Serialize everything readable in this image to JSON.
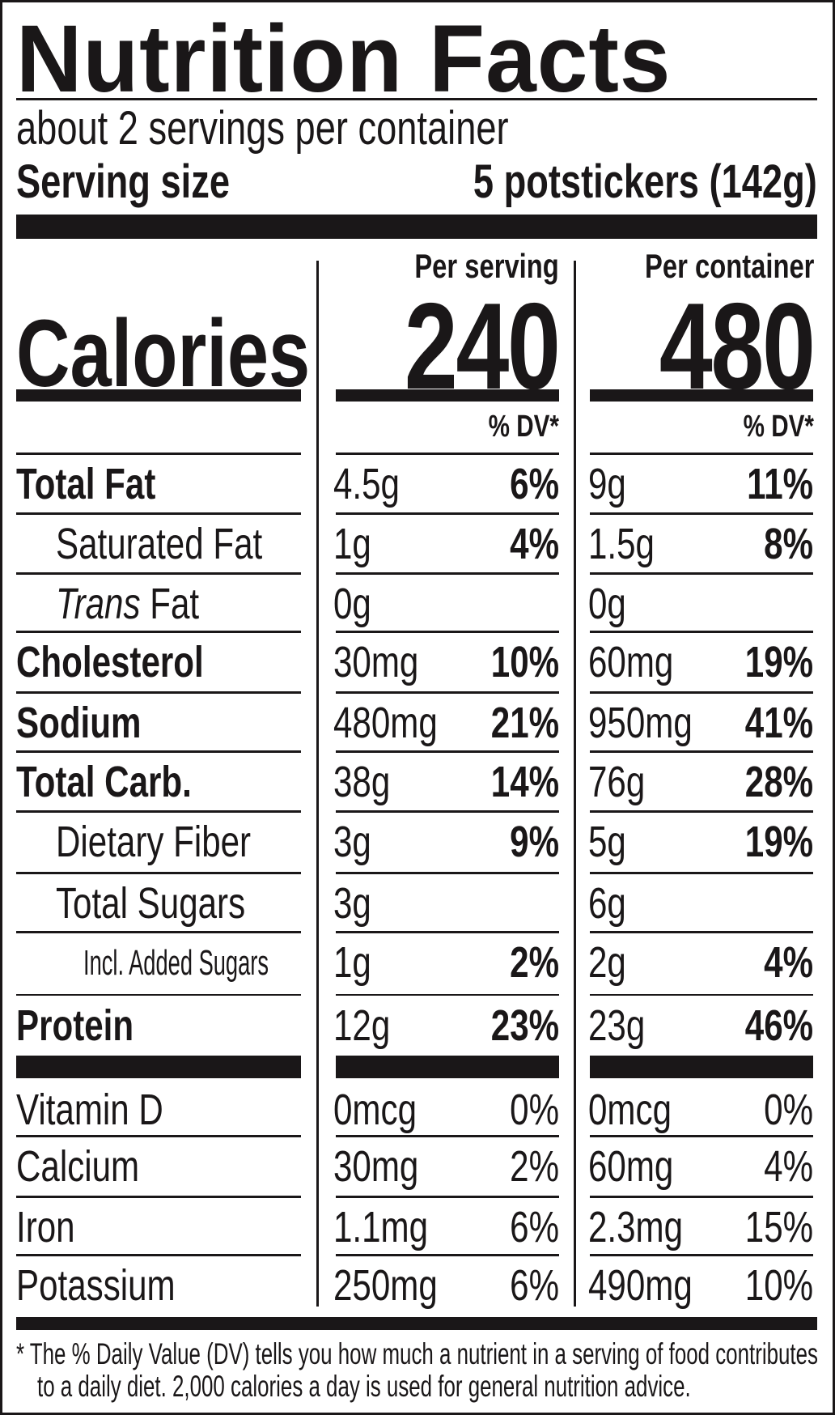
{
  "title": "Nutrition Facts",
  "servings_per_container": "about 2 servings per container",
  "serving_size_label": "Serving size",
  "serving_size_value": "5 potstickers (142g)",
  "per_serving_label": "Per serving",
  "per_container_label": "Per container",
  "calories_label": "Calories",
  "calories_per_serving": "240",
  "calories_per_container": "480",
  "dv_header": "% DV*",
  "nutrients": [
    {
      "label": "Total Fat",
      "bold": true,
      "indent": 0,
      "s_amt": "4.5g",
      "s_dv": "6%",
      "c_amt": "9g",
      "c_dv": "11%"
    },
    {
      "label": "Saturated Fat",
      "bold": false,
      "indent": 1,
      "s_amt": "1g",
      "s_dv": "4%",
      "c_amt": "1.5g",
      "c_dv": "8%"
    },
    {
      "label": "Trans",
      "label_suffix": " Fat",
      "italic_prefix": true,
      "bold": false,
      "indent": 1,
      "s_amt": "0g",
      "s_dv": "",
      "c_amt": "0g",
      "c_dv": ""
    },
    {
      "label": "Cholesterol",
      "bold": true,
      "indent": 0,
      "s_amt": "30mg",
      "s_dv": "10%",
      "c_amt": "60mg",
      "c_dv": "19%"
    },
    {
      "label": "Sodium",
      "bold": true,
      "indent": 0,
      "s_amt": "480mg",
      "s_dv": "21%",
      "c_amt": "950mg",
      "c_dv": "41%"
    },
    {
      "label": "Total Carb.",
      "bold": true,
      "indent": 0,
      "s_amt": "38g",
      "s_dv": "14%",
      "c_amt": "76g",
      "c_dv": "28%"
    },
    {
      "label": "Dietary Fiber",
      "bold": false,
      "indent": 1,
      "s_amt": "3g",
      "s_dv": "9%",
      "c_amt": "5g",
      "c_dv": "19%"
    },
    {
      "label": "Total Sugars",
      "bold": false,
      "indent": 1,
      "s_amt": "3g",
      "s_dv": "",
      "c_amt": "6g",
      "c_dv": ""
    },
    {
      "label": "Incl. Added Sugars",
      "bold": false,
      "indent": 2,
      "s_amt": "1g",
      "s_dv": "2%",
      "c_amt": "2g",
      "c_dv": "4%"
    },
    {
      "label": "Protein",
      "bold": true,
      "indent": 0,
      "s_amt": "12g",
      "s_dv": "23%",
      "c_amt": "23g",
      "c_dv": "46%"
    }
  ],
  "vitamins": [
    {
      "label": "Vitamin D",
      "s_amt": "0mcg",
      "s_dv": "0%",
      "c_amt": "0mcg",
      "c_dv": "0%"
    },
    {
      "label": "Calcium",
      "s_amt": "30mg",
      "s_dv": "2%",
      "c_amt": "60mg",
      "c_dv": "4%"
    },
    {
      "label": "Iron",
      "s_amt": "1.1mg",
      "s_dv": "6%",
      "c_amt": "2.3mg",
      "c_dv": "15%"
    },
    {
      "label": "Potassium",
      "s_amt": "250mg",
      "s_dv": "6%",
      "c_amt": "490mg",
      "c_dv": "10%"
    }
  ],
  "footnote_line1": "* The % Daily Value (DV) tells you how much a nutrient in a serving of food contributes",
  "footnote_line2": "to a daily diet. 2,000 calories a day is used for general nutrition advice."
}
